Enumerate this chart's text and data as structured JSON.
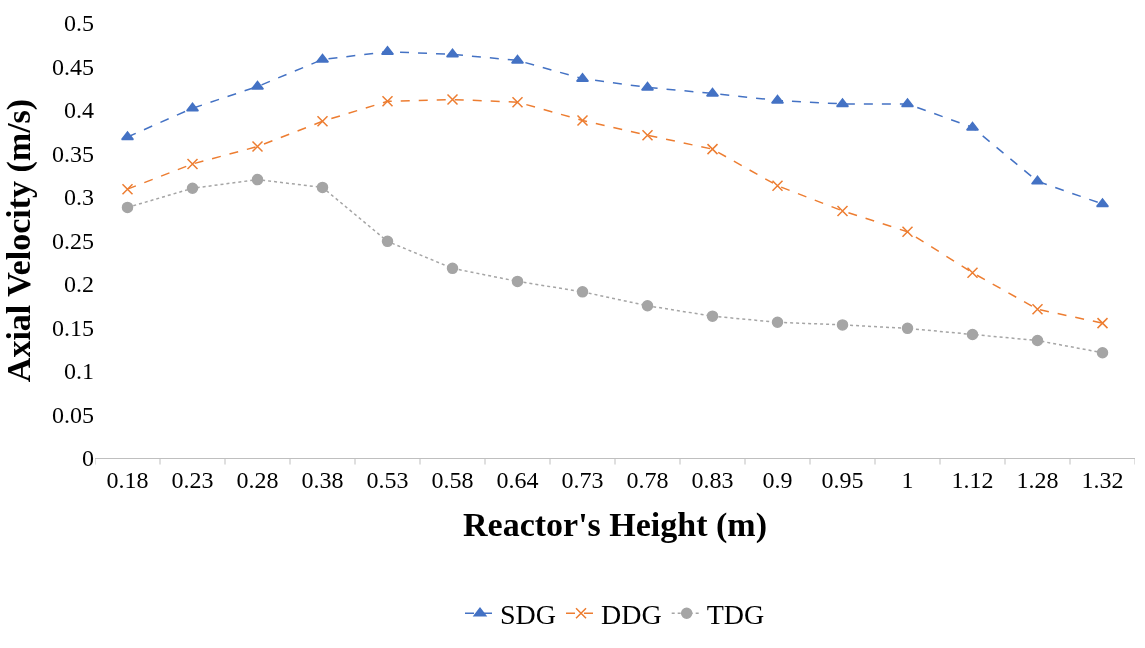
{
  "chart_data": {
    "type": "line",
    "xlabel": "Reactor's Height (m)",
    "ylabel": "Axial Velocity (m/s)",
    "categories": [
      "0.18",
      "0.23",
      "0.28",
      "0.38",
      "0.53",
      "0.58",
      "0.64",
      "0.73",
      "0.78",
      "0.83",
      "0.9",
      "0.95",
      "1",
      "1.12",
      "1.28",
      "1.32"
    ],
    "series": [
      {
        "name": "SDG",
        "color": "#4472c4",
        "marker": "triangle",
        "line_style": "dashed",
        "values": [
          0.369,
          0.402,
          0.427,
          0.458,
          0.467,
          0.464,
          0.457,
          0.436,
          0.426,
          0.419,
          0.411,
          0.407,
          0.407,
          0.38,
          0.318,
          0.292
        ]
      },
      {
        "name": "DDG",
        "color": "#ed7d31",
        "marker": "cross",
        "line_style": "dashed",
        "values": [
          0.309,
          0.338,
          0.358,
          0.387,
          0.41,
          0.412,
          0.409,
          0.388,
          0.371,
          0.355,
          0.313,
          0.284,
          0.26,
          0.213,
          0.171,
          0.155
        ]
      },
      {
        "name": "TDG",
        "color": "#a5a5a5",
        "marker": "circle",
        "line_style": "dotted",
        "values": [
          0.288,
          0.31,
          0.32,
          0.311,
          0.249,
          0.218,
          0.203,
          0.191,
          0.175,
          0.163,
          0.156,
          0.153,
          0.149,
          0.142,
          0.135,
          0.121
        ]
      }
    ],
    "ylim": [
      0,
      0.5
    ],
    "yticks": [
      0,
      0.05,
      0.1,
      0.15,
      0.2,
      0.25,
      0.3,
      0.35,
      0.4,
      0.45,
      0.5
    ],
    "grid": false,
    "legend": "bottom"
  }
}
